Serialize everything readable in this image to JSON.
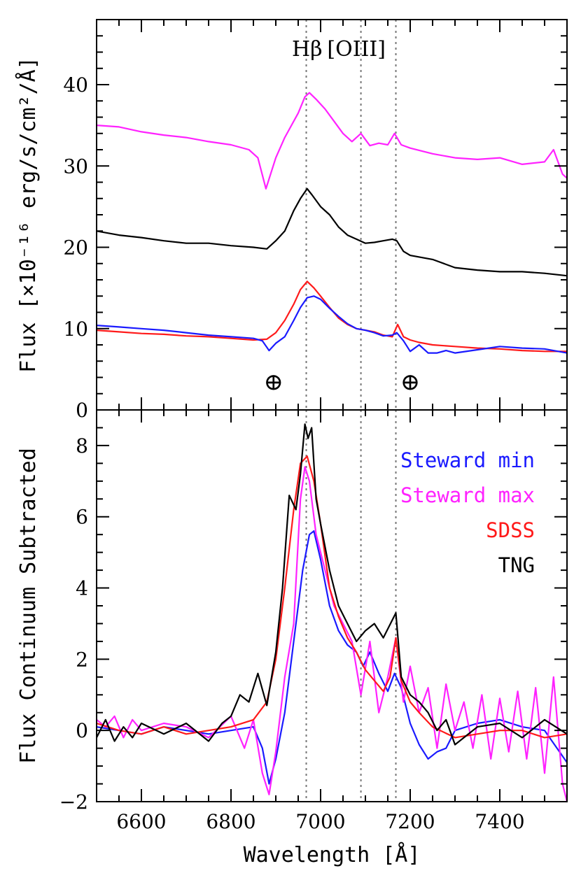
{
  "chart_data": [
    {
      "type": "line",
      "panel": "top",
      "xlim": [
        6500,
        7550
      ],
      "ylim": [
        0,
        48
      ],
      "ylabel": "Flux [×10⁻¹⁶ erg/s/cm²/Å]",
      "xlabel": "",
      "yticks": [
        0,
        10,
        20,
        30,
        40
      ],
      "ytick_labels": [
        "0",
        "10",
        "20",
        "30",
        "40"
      ],
      "grid": false,
      "annotations": [
        {
          "text": "Hβ",
          "x": 6970
        },
        {
          "text": "[OIII]",
          "x": 7080
        },
        {
          "text": "⊕",
          "x": 6895,
          "y": 3.5
        },
        {
          "text": "⊕",
          "x": 7200,
          "y": 3.5
        }
      ],
      "vlines": [
        6968,
        7090,
        7168
      ],
      "series": [
        {
          "color": "#ff22ff",
          "x": [
            6500,
            6550,
            6600,
            6650,
            6700,
            6750,
            6800,
            6840,
            6860,
            6878,
            6900,
            6920,
            6935,
            6950,
            6965,
            6975,
            6990,
            7010,
            7030,
            7050,
            7070,
            7090,
            7110,
            7130,
            7150,
            7165,
            7180,
            7200,
            7250,
            7300,
            7350,
            7400,
            7450,
            7500,
            7520,
            7540,
            7550
          ],
          "y": [
            35,
            34.8,
            34.2,
            33.8,
            33.5,
            33.0,
            32.6,
            32.0,
            31.0,
            27.2,
            31.0,
            33.5,
            35.0,
            36.5,
            38.5,
            39.0,
            38.2,
            37.0,
            35.5,
            34.0,
            33.0,
            34.0,
            32.5,
            32.8,
            32.6,
            34.0,
            32.6,
            32.2,
            31.5,
            31.0,
            30.8,
            31.0,
            30.2,
            30.5,
            32.0,
            29.0,
            28.5
          ]
        },
        {
          "color": "#000000",
          "x": [
            6500,
            6550,
            6600,
            6650,
            6700,
            6750,
            6800,
            6850,
            6880,
            6900,
            6920,
            6940,
            6955,
            6970,
            6980,
            7000,
            7020,
            7040,
            7060,
            7080,
            7100,
            7120,
            7140,
            7160,
            7170,
            7185,
            7200,
            7250,
            7300,
            7350,
            7400,
            7450,
            7500,
            7550
          ],
          "y": [
            22,
            21.5,
            21.2,
            20.8,
            20.5,
            20.5,
            20.2,
            20.0,
            19.8,
            20.8,
            22.0,
            24.5,
            26.0,
            27.2,
            26.5,
            25.0,
            24.0,
            22.5,
            21.5,
            21.0,
            20.5,
            20.6,
            20.8,
            21.0,
            20.8,
            19.5,
            19.0,
            18.5,
            17.5,
            17.2,
            17.0,
            17.0,
            16.8,
            16.5
          ]
        },
        {
          "color": "#ff1a1a",
          "x": [
            6500,
            6550,
            6600,
            6650,
            6700,
            6750,
            6800,
            6850,
            6880,
            6900,
            6920,
            6940,
            6955,
            6970,
            6985,
            7000,
            7020,
            7040,
            7060,
            7080,
            7100,
            7120,
            7140,
            7160,
            7172,
            7185,
            7200,
            7220,
            7250,
            7300,
            7350,
            7400,
            7450,
            7500,
            7550
          ],
          "y": [
            9.8,
            9.6,
            9.4,
            9.3,
            9.1,
            9.0,
            8.8,
            8.6,
            8.7,
            9.5,
            11.0,
            13.0,
            14.8,
            15.8,
            15.0,
            14.0,
            12.6,
            11.3,
            10.5,
            10.0,
            9.8,
            9.6,
            9.2,
            9.0,
            10.5,
            9.0,
            8.6,
            8.3,
            8.0,
            7.8,
            7.6,
            7.5,
            7.3,
            7.2,
            7.2
          ]
        },
        {
          "color": "#1a1aff",
          "x": [
            6500,
            6550,
            6600,
            6650,
            6700,
            6750,
            6800,
            6850,
            6870,
            6885,
            6900,
            6920,
            6940,
            6955,
            6970,
            6985,
            7000,
            7020,
            7040,
            7060,
            7080,
            7100,
            7120,
            7140,
            7160,
            7170,
            7185,
            7200,
            7220,
            7240,
            7260,
            7280,
            7300,
            7350,
            7400,
            7450,
            7500,
            7550
          ],
          "y": [
            10.4,
            10.2,
            10.0,
            9.8,
            9.5,
            9.2,
            9.0,
            8.8,
            8.5,
            7.3,
            8.2,
            9.0,
            11.0,
            12.6,
            13.8,
            14.0,
            13.6,
            12.5,
            11.5,
            10.6,
            10.0,
            9.8,
            9.5,
            9.1,
            9.2,
            9.5,
            8.5,
            7.2,
            8.0,
            7.0,
            7.0,
            7.3,
            7.0,
            7.4,
            7.8,
            7.6,
            7.5,
            7.0
          ]
        }
      ]
    },
    {
      "type": "line",
      "panel": "bottom",
      "xlim": [
        6500,
        7550
      ],
      "ylim": [
        -2,
        9
      ],
      "xlabel": "Wavelength [Å]",
      "ylabel": "Flux Continuum Subtracted",
      "xticks": [
        6600,
        6800,
        7000,
        7200,
        7400
      ],
      "xtick_labels": [
        "6600",
        "6800",
        "7000",
        "7200",
        "7400"
      ],
      "yticks": [
        -2,
        0,
        2,
        4,
        6,
        8
      ],
      "ytick_labels": [
        "−2",
        "0",
        "2",
        "4",
        "6",
        "8"
      ],
      "grid": false,
      "legend_placement": "top-right",
      "vlines": [
        6968,
        7090,
        7168
      ],
      "series": [
        {
          "name": "Steward min",
          "color": "#1a1aff",
          "x": [
            6500,
            6550,
            6600,
            6650,
            6700,
            6750,
            6800,
            6850,
            6870,
            6885,
            6900,
            6920,
            6940,
            6960,
            6975,
            6985,
            7000,
            7020,
            7040,
            7060,
            7080,
            7095,
            7110,
            7130,
            7150,
            7165,
            7180,
            7200,
            7220,
            7240,
            7260,
            7280,
            7300,
            7350,
            7400,
            7450,
            7500,
            7550
          ],
          "y": [
            0.1,
            0.0,
            -0.1,
            0.1,
            0.0,
            -0.1,
            0.0,
            0.1,
            -0.5,
            -1.5,
            -0.8,
            0.5,
            2.5,
            4.5,
            5.5,
            5.6,
            4.8,
            3.5,
            2.8,
            2.4,
            2.2,
            1.8,
            2.2,
            1.6,
            1.1,
            1.6,
            1.2,
            0.2,
            -0.4,
            -0.8,
            -0.6,
            -0.5,
            0.0,
            0.2,
            0.3,
            0.1,
            0.0,
            -0.9
          ]
        },
        {
          "name": "Steward max",
          "color": "#ff22ff",
          "x": [
            6500,
            6520,
            6540,
            6560,
            6580,
            6600,
            6650,
            6700,
            6750,
            6800,
            6830,
            6850,
            6870,
            6885,
            6900,
            6920,
            6940,
            6955,
            6965,
            6975,
            6990,
            7010,
            7030,
            7050,
            7070,
            7090,
            7110,
            7130,
            7150,
            7168,
            7185,
            7200,
            7220,
            7240,
            7260,
            7280,
            7300,
            7320,
            7340,
            7360,
            7380,
            7400,
            7420,
            7440,
            7460,
            7480,
            7500,
            7520,
            7540,
            7550
          ],
          "y": [
            0.3,
            0.1,
            0.4,
            -0.2,
            0.3,
            0.0,
            0.2,
            0.1,
            -0.2,
            0.4,
            -0.5,
            0.3,
            -1.2,
            -1.8,
            -0.6,
            1.5,
            3.0,
            6.5,
            7.4,
            7.0,
            5.5,
            4.5,
            3.5,
            3.0,
            2.5,
            1.0,
            2.5,
            0.5,
            1.5,
            2.6,
            0.8,
            1.8,
            0.5,
            1.2,
            -0.5,
            1.3,
            0.0,
            0.8,
            -0.5,
            1.0,
            -0.8,
            0.9,
            -0.6,
            1.1,
            -0.8,
            1.2,
            -1.2,
            1.5,
            -1.5,
            -2.0
          ]
        },
        {
          "name": "SDSS",
          "color": "#ff1a1a",
          "x": [
            6500,
            6550,
            6600,
            6650,
            6700,
            6750,
            6800,
            6850,
            6880,
            6900,
            6920,
            6940,
            6955,
            6970,
            6985,
            7000,
            7020,
            7040,
            7060,
            7080,
            7100,
            7120,
            7140,
            7155,
            7168,
            7180,
            7200,
            7220,
            7250,
            7300,
            7350,
            7400,
            7450,
            7500,
            7550
          ],
          "y": [
            0.2,
            0.0,
            -0.1,
            0.1,
            -0.1,
            0.0,
            0.1,
            0.3,
            0.8,
            2.0,
            4.0,
            6.2,
            7.5,
            7.7,
            7.0,
            5.8,
            4.0,
            3.2,
            2.6,
            2.2,
            1.7,
            1.4,
            1.1,
            1.5,
            2.6,
            1.4,
            0.8,
            0.5,
            0.1,
            -0.2,
            -0.1,
            0.0,
            0.0,
            -0.2,
            -0.1
          ]
        },
        {
          "name": "TNG",
          "color": "#000000",
          "x": [
            6500,
            6520,
            6540,
            6560,
            6580,
            6600,
            6650,
            6700,
            6750,
            6780,
            6800,
            6820,
            6840,
            6860,
            6880,
            6900,
            6915,
            6930,
            6945,
            6955,
            6965,
            6972,
            6980,
            6990,
            7000,
            7020,
            7040,
            7060,
            7080,
            7100,
            7120,
            7140,
            7160,
            7168,
            7180,
            7200,
            7220,
            7240,
            7260,
            7280,
            7300,
            7350,
            7400,
            7450,
            7500,
            7550
          ],
          "y": [
            -0.2,
            0.3,
            -0.3,
            0.1,
            -0.2,
            0.2,
            -0.1,
            0.2,
            -0.3,
            0.2,
            0.4,
            1.0,
            0.8,
            1.6,
            0.7,
            2.2,
            4.0,
            6.6,
            6.2,
            7.2,
            8.6,
            8.2,
            8.5,
            6.5,
            5.8,
            4.5,
            3.5,
            3.0,
            2.5,
            2.8,
            3.0,
            2.6,
            3.1,
            3.3,
            1.5,
            1.0,
            0.8,
            0.5,
            0.0,
            0.3,
            -0.4,
            0.1,
            0.2,
            -0.2,
            0.3,
            -0.1
          ]
        }
      ]
    }
  ]
}
